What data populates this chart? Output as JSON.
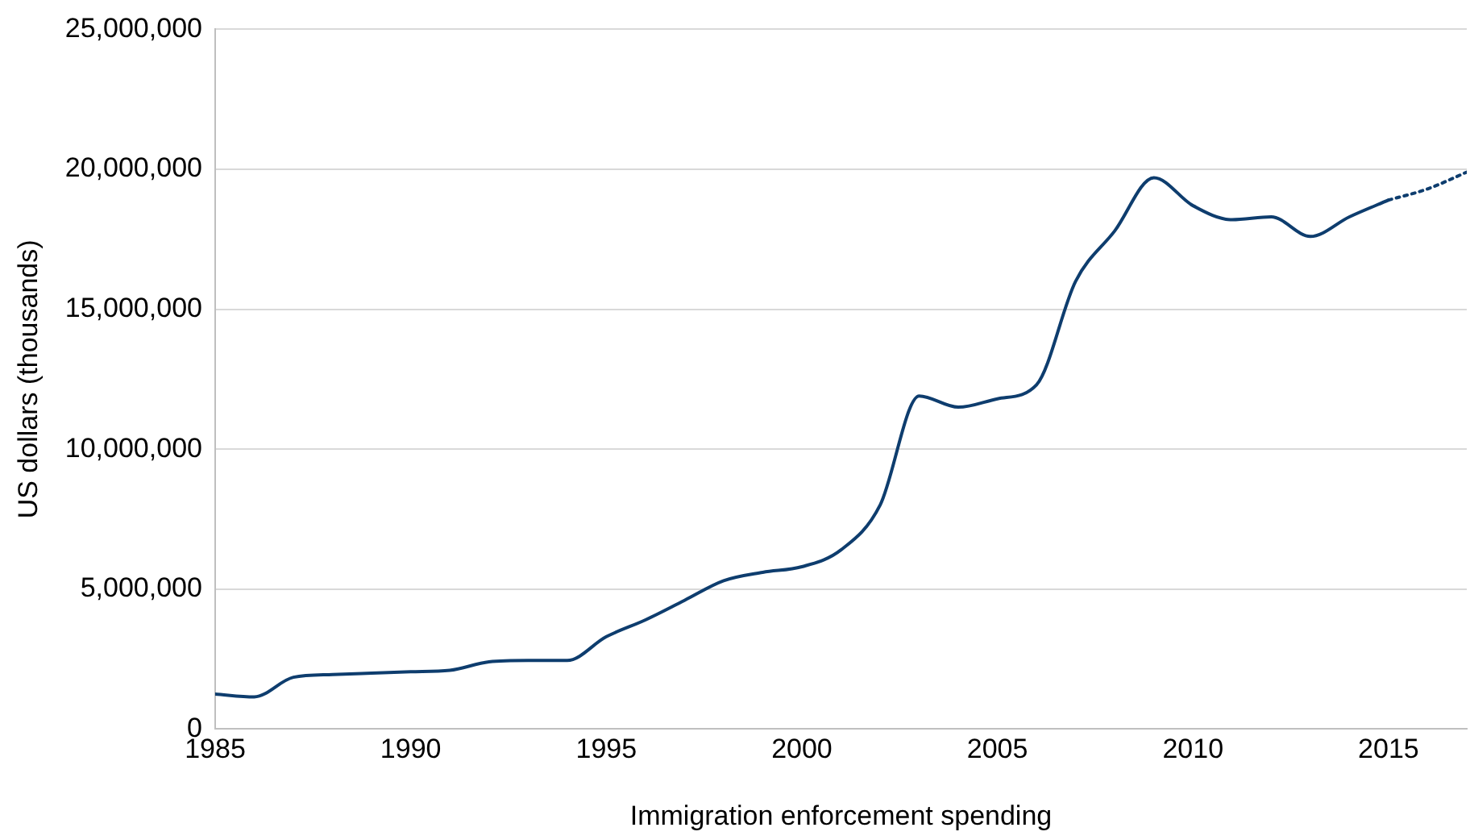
{
  "chart_data": {
    "type": "line",
    "xlabel": "Immigration enforcement spending",
    "ylabel": "US dollars (thousands)",
    "xlim": [
      1985,
      2017
    ],
    "xticks": [
      1985,
      1990,
      1995,
      2000,
      2005,
      2010,
      2015
    ],
    "ylim": [
      0,
      25000000
    ],
    "yticks": [
      0,
      {
        "value": 5000000,
        "label": "5,000,000"
      },
      {
        "value": 10000000,
        "label": "10,000,000"
      },
      {
        "value": 15000000,
        "label": "15,000,000"
      },
      {
        "value": 20000000,
        "label": "20,000,000"
      },
      {
        "value": 25000000,
        "label": "25,000,000"
      }
    ],
    "grid": "y",
    "legend": false,
    "marker": "none",
    "series": [
      {
        "color": "#0e3d6e",
        "line_style": "solid",
        "x": [
          1985,
          1986,
          1987,
          1988,
          1989,
          1990,
          1991,
          1992,
          1993,
          1994,
          1995,
          1996,
          1997,
          1998,
          1999,
          2000,
          2001,
          2002,
          2003,
          2004,
          2005,
          2006,
          2007,
          2008,
          2009,
          2010,
          2011,
          2012,
          2013,
          2014,
          2015
        ],
        "values": [
          1250000,
          1150000,
          1850000,
          1950000,
          2000000,
          2050000,
          2100000,
          2400000,
          2450000,
          2450000,
          3300000,
          3900000,
          4600000,
          5300000,
          5600000,
          5800000,
          6400000,
          8000000,
          11900000,
          11500000,
          11800000,
          12300000,
          16000000,
          17800000,
          19700000,
          18700000,
          18200000,
          18300000,
          17600000,
          18300000,
          18900000
        ]
      },
      {
        "color": "#0e3d6e",
        "line_style": "dotted",
        "x": [
          2015,
          2016,
          2017
        ],
        "values": [
          18900000,
          19300000,
          19900000
        ]
      }
    ]
  }
}
